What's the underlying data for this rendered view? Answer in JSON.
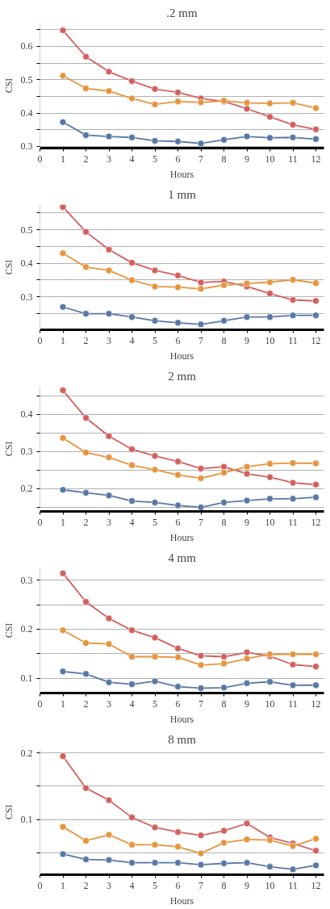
{
  "chart_data": [
    {
      "type": "line",
      "title": ".2 mm",
      "xlabel": "Hours",
      "ylabel": "CSI",
      "x": [
        1,
        2,
        3,
        4,
        5,
        6,
        7,
        8,
        9,
        10,
        11,
        12
      ],
      "xlim": [
        0,
        12.35
      ],
      "ylim": [
        0.295,
        0.67
      ],
      "xticks": [
        0,
        1,
        2,
        3,
        4,
        5,
        6,
        7,
        8,
        9,
        10,
        11,
        12
      ],
      "yticks": [
        0.3,
        {
          "value": 0.35,
          "label": null
        },
        0.4,
        {
          "value": 0.45,
          "label": null
        },
        0.5,
        {
          "value": 0.55,
          "label": null
        },
        0.6,
        {
          "value": 0.65,
          "label": null
        }
      ],
      "grid": "y",
      "marker": "circle",
      "line_style": "solid",
      "series": [
        {
          "color": "#d1605e",
          "values": [
            0.648,
            0.569,
            0.524,
            0.496,
            0.472,
            0.462,
            0.444,
            0.435,
            0.413,
            0.389,
            0.365,
            0.351
          ]
        },
        {
          "color": "#e5953d",
          "values": [
            0.512,
            0.474,
            0.466,
            0.444,
            0.426,
            0.435,
            0.432,
            0.437,
            0.431,
            0.429,
            0.431,
            0.415
          ]
        },
        {
          "color": "#5778a4",
          "values": [
            0.373,
            0.334,
            0.33,
            0.327,
            0.317,
            0.315,
            0.309,
            0.32,
            0.33,
            0.326,
            0.327,
            0.322
          ]
        }
      ]
    },
    {
      "type": "line",
      "title": "1 mm",
      "xlabel": "Hours",
      "ylabel": "CSI",
      "x": [
        1,
        2,
        3,
        4,
        5,
        6,
        7,
        8,
        9,
        10,
        11,
        12
      ],
      "xlim": [
        0,
        12.35
      ],
      "ylim": [
        0.202,
        0.575
      ],
      "xticks": [
        0,
        1,
        2,
        3,
        4,
        5,
        6,
        7,
        8,
        9,
        10,
        11,
        12
      ],
      "yticks": [
        {
          "value": 0.25,
          "label": null
        },
        0.3,
        {
          "value": 0.35,
          "label": null
        },
        0.4,
        {
          "value": 0.45,
          "label": null
        },
        0.5,
        {
          "value": 0.55,
          "label": null
        }
      ],
      "grid": "y",
      "marker": "circle",
      "line_style": "solid",
      "series": [
        {
          "color": "#d1605e",
          "values": [
            0.568,
            0.494,
            0.441,
            0.402,
            0.379,
            0.364,
            0.343,
            0.346,
            0.331,
            0.31,
            0.291,
            0.288
          ]
        },
        {
          "color": "#e5953d",
          "values": [
            0.43,
            0.389,
            0.379,
            0.35,
            0.331,
            0.329,
            0.324,
            0.335,
            0.34,
            0.344,
            0.351,
            0.341
          ]
        },
        {
          "color": "#5778a4",
          "values": [
            0.27,
            0.25,
            0.25,
            0.24,
            0.229,
            0.223,
            0.218,
            0.229,
            0.24,
            0.24,
            0.245,
            0.245
          ]
        }
      ]
    },
    {
      "type": "line",
      "title": "2 mm",
      "xlabel": "Hours",
      "ylabel": "CSI",
      "x": [
        1,
        2,
        3,
        4,
        5,
        6,
        7,
        8,
        9,
        10,
        11,
        12
      ],
      "xlim": [
        0,
        12.35
      ],
      "ylim": [
        0.139,
        0.475
      ],
      "xticks": [
        0,
        1,
        2,
        3,
        4,
        5,
        6,
        7,
        8,
        9,
        10,
        11,
        12
      ],
      "yticks": [
        {
          "value": 0.15,
          "label": null
        },
        0.2,
        {
          "value": 0.25,
          "label": null
        },
        0.3,
        {
          "value": 0.35,
          "label": null
        },
        0.4,
        {
          "value": 0.45,
          "label": null
        }
      ],
      "grid": "y",
      "marker": "circle",
      "line_style": "solid",
      "series": [
        {
          "color": "#d1605e",
          "values": [
            0.464,
            0.39,
            0.341,
            0.306,
            0.288,
            0.273,
            0.254,
            0.259,
            0.24,
            0.231,
            0.216,
            0.211
          ]
        },
        {
          "color": "#e5953d",
          "values": [
            0.336,
            0.297,
            0.284,
            0.263,
            0.251,
            0.237,
            0.228,
            0.243,
            0.259,
            0.267,
            0.269,
            0.268
          ]
        },
        {
          "color": "#5778a4",
          "values": [
            0.197,
            0.189,
            0.182,
            0.167,
            0.163,
            0.155,
            0.15,
            0.163,
            0.168,
            0.173,
            0.173,
            0.177
          ]
        }
      ]
    },
    {
      "type": "line",
      "title": "4 mm",
      "xlabel": "Hours",
      "ylabel": "CSI",
      "x": [
        1,
        2,
        3,
        4,
        5,
        6,
        7,
        8,
        9,
        10,
        11,
        12
      ],
      "xlim": [
        0,
        12.35
      ],
      "ylim": [
        0.07,
        0.325
      ],
      "xticks": [
        0,
        1,
        2,
        3,
        4,
        5,
        6,
        7,
        8,
        9,
        10,
        11,
        12
      ],
      "yticks": [
        0.1,
        {
          "value": 0.15,
          "label": null
        },
        0.2,
        {
          "value": 0.25,
          "label": null
        },
        0.3
      ],
      "grid": "y",
      "marker": "circle",
      "line_style": "solid",
      "series": [
        {
          "color": "#d1605e",
          "values": [
            0.314,
            0.256,
            0.222,
            0.198,
            0.183,
            0.161,
            0.146,
            0.144,
            0.153,
            0.145,
            0.128,
            0.124
          ]
        },
        {
          "color": "#e5953d",
          "values": [
            0.198,
            0.172,
            0.17,
            0.144,
            0.144,
            0.143,
            0.127,
            0.13,
            0.14,
            0.149,
            0.149,
            0.149
          ]
        },
        {
          "color": "#5778a4",
          "values": [
            0.114,
            0.109,
            0.092,
            0.088,
            0.094,
            0.083,
            0.08,
            0.081,
            0.09,
            0.093,
            0.086,
            0.086
          ]
        }
      ]
    },
    {
      "type": "line",
      "title": "8 mm",
      "xlabel": "Hours",
      "ylabel": "CSI",
      "x": [
        1,
        2,
        3,
        4,
        5,
        6,
        7,
        8,
        9,
        10,
        11,
        12
      ],
      "xlim": [
        0,
        12.35
      ],
      "ylim": [
        0.017,
        0.205
      ],
      "xticks": [
        0,
        1,
        2,
        3,
        4,
        5,
        6,
        7,
        8,
        9,
        10,
        11,
        12
      ],
      "yticks": [
        {
          "value": 0.05,
          "label": null
        },
        0.1,
        {
          "value": 0.15,
          "label": null
        },
        0.2
      ],
      "grid": "y",
      "marker": "circle",
      "line_style": "solid",
      "series": [
        {
          "color": "#d1605e",
          "values": [
            0.195,
            0.147,
            0.129,
            0.103,
            0.088,
            0.081,
            0.076,
            0.083,
            0.094,
            0.073,
            0.064,
            0.053
          ]
        },
        {
          "color": "#e5953d",
          "values": [
            0.089,
            0.068,
            0.077,
            0.062,
            0.062,
            0.059,
            0.049,
            0.065,
            0.07,
            0.069,
            0.06,
            0.071
          ]
        },
        {
          "color": "#5778a4",
          "values": [
            0.048,
            0.04,
            0.039,
            0.035,
            0.035,
            0.035,
            0.032,
            0.034,
            0.035,
            0.029,
            0.025,
            0.031
          ]
        }
      ]
    }
  ]
}
